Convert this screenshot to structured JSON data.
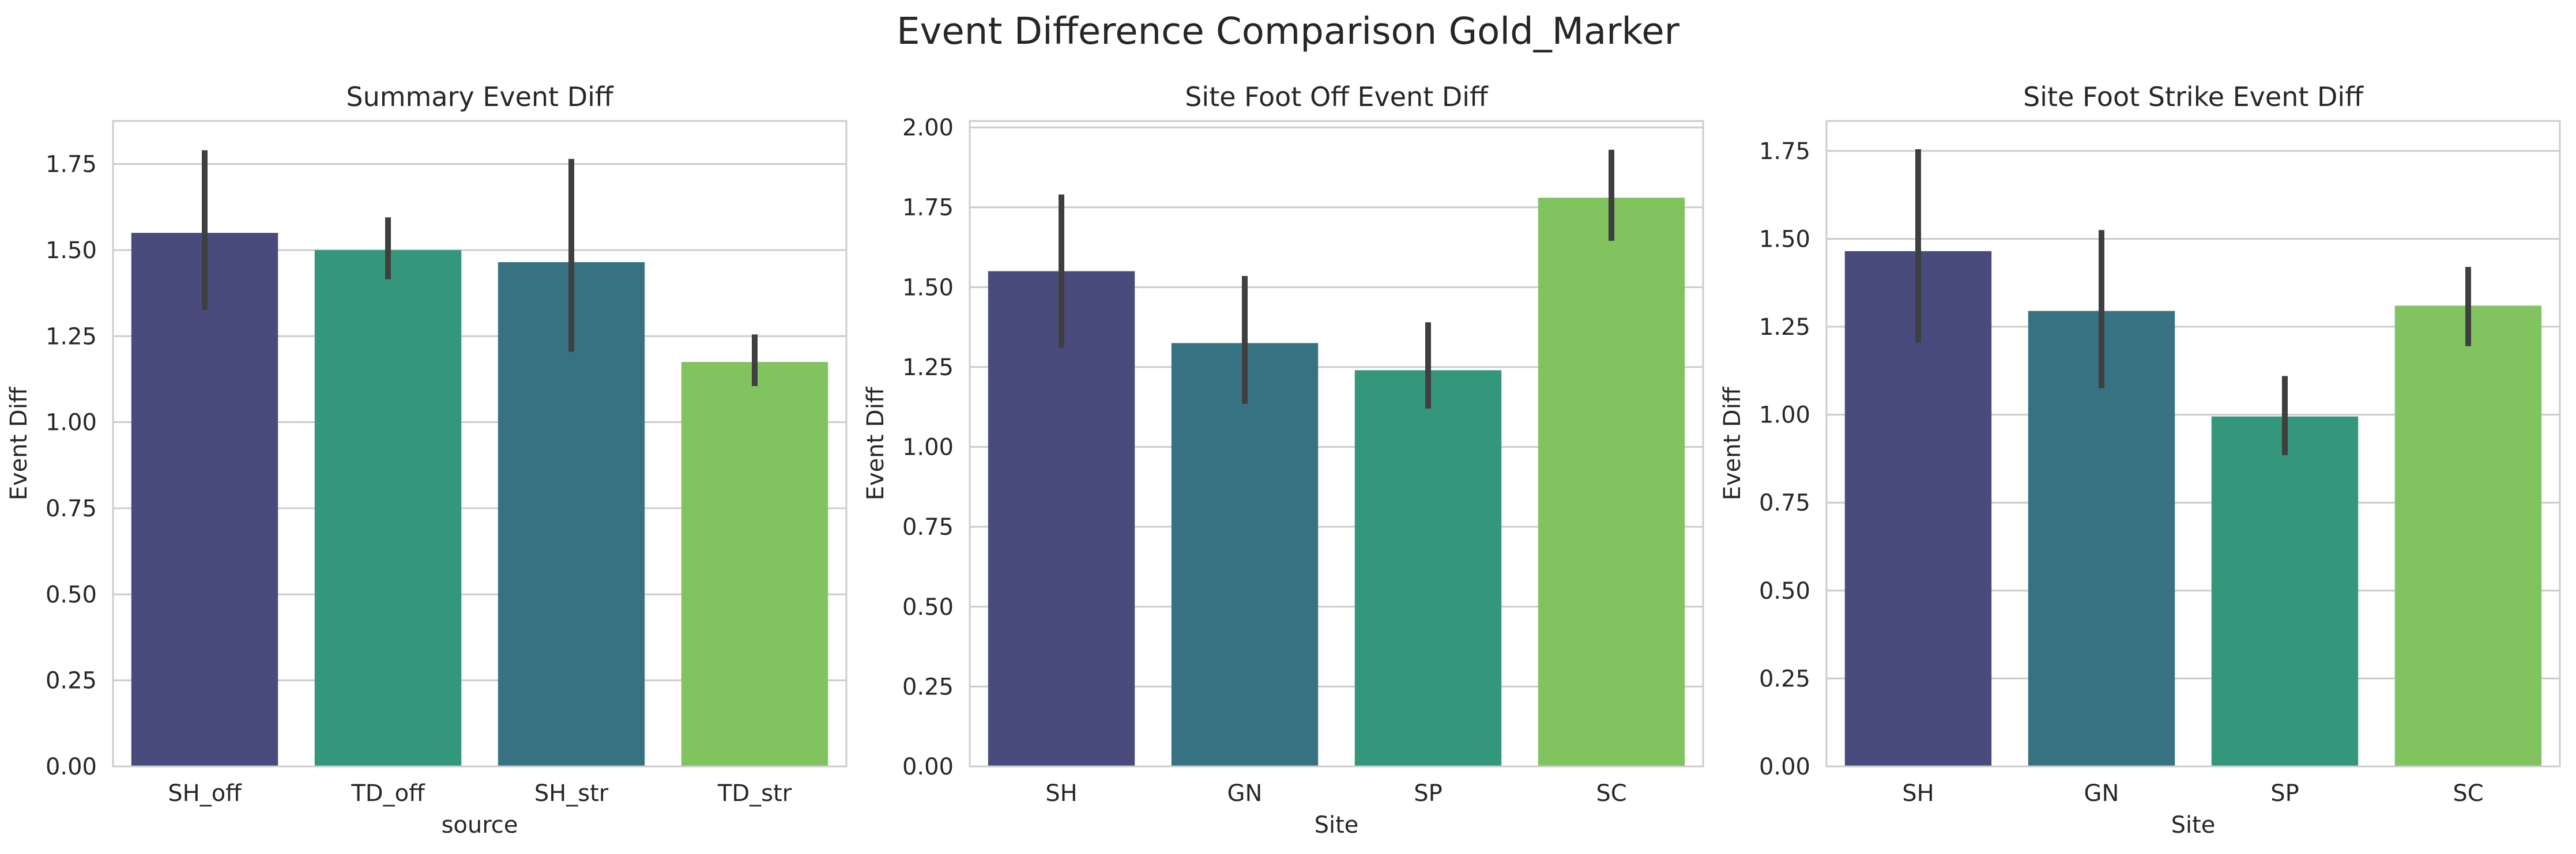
{
  "suptitle": "Event Difference Comparison Gold_Marker",
  "chart_data": [
    {
      "type": "bar",
      "title": "Summary Event Diff",
      "xlabel": "source",
      "ylabel": "Event Diff",
      "categories": [
        "SH_off",
        "TD_off",
        "SH_str",
        "TD_str"
      ],
      "values": [
        1.55,
        1.5,
        1.465,
        1.175
      ],
      "error_low": [
        1.325,
        1.415,
        1.205,
        1.105
      ],
      "error_high": [
        1.79,
        1.595,
        1.765,
        1.255
      ],
      "colors": [
        "#4a4b7d",
        "#34977b",
        "#377283",
        "#80c35f"
      ],
      "ylim": [
        0,
        1.875
      ],
      "yticks": [
        "0.00",
        "0.25",
        "0.50",
        "0.75",
        "1.00",
        "1.25",
        "1.50",
        "1.75"
      ],
      "grid": true
    },
    {
      "type": "bar",
      "title": "Site Foot Off Event Diff",
      "xlabel": "Site",
      "ylabel": "Event Diff",
      "categories": [
        "SH",
        "GN",
        "SP",
        "SC"
      ],
      "values": [
        1.55,
        1.325,
        1.24,
        1.78
      ],
      "error_low": [
        1.31,
        1.135,
        1.12,
        1.645
      ],
      "error_high": [
        1.79,
        1.535,
        1.39,
        1.93
      ],
      "colors": [
        "#4a4b7d",
        "#377283",
        "#34977b",
        "#80c35f"
      ],
      "ylim": [
        0,
        2.02
      ],
      "yticks": [
        "0.00",
        "0.25",
        "0.50",
        "0.75",
        "1.00",
        "1.25",
        "1.50",
        "1.75",
        "2.00"
      ],
      "grid": true
    },
    {
      "type": "bar",
      "title": "Site Foot Strike Event Diff",
      "xlabel": "Site",
      "ylabel": "Event Diff",
      "categories": [
        "SH",
        "GN",
        "SP",
        "SC"
      ],
      "values": [
        1.465,
        1.295,
        0.995,
        1.31
      ],
      "error_low": [
        1.205,
        1.075,
        0.885,
        1.195
      ],
      "error_high": [
        1.755,
        1.525,
        1.11,
        1.42
      ],
      "colors": [
        "#4a4b7d",
        "#377283",
        "#34977b",
        "#80c35f"
      ],
      "ylim": [
        0,
        1.835
      ],
      "yticks": [
        "0.00",
        "0.25",
        "0.50",
        "0.75",
        "1.00",
        "1.25",
        "1.50",
        "1.75"
      ],
      "grid": true
    }
  ]
}
